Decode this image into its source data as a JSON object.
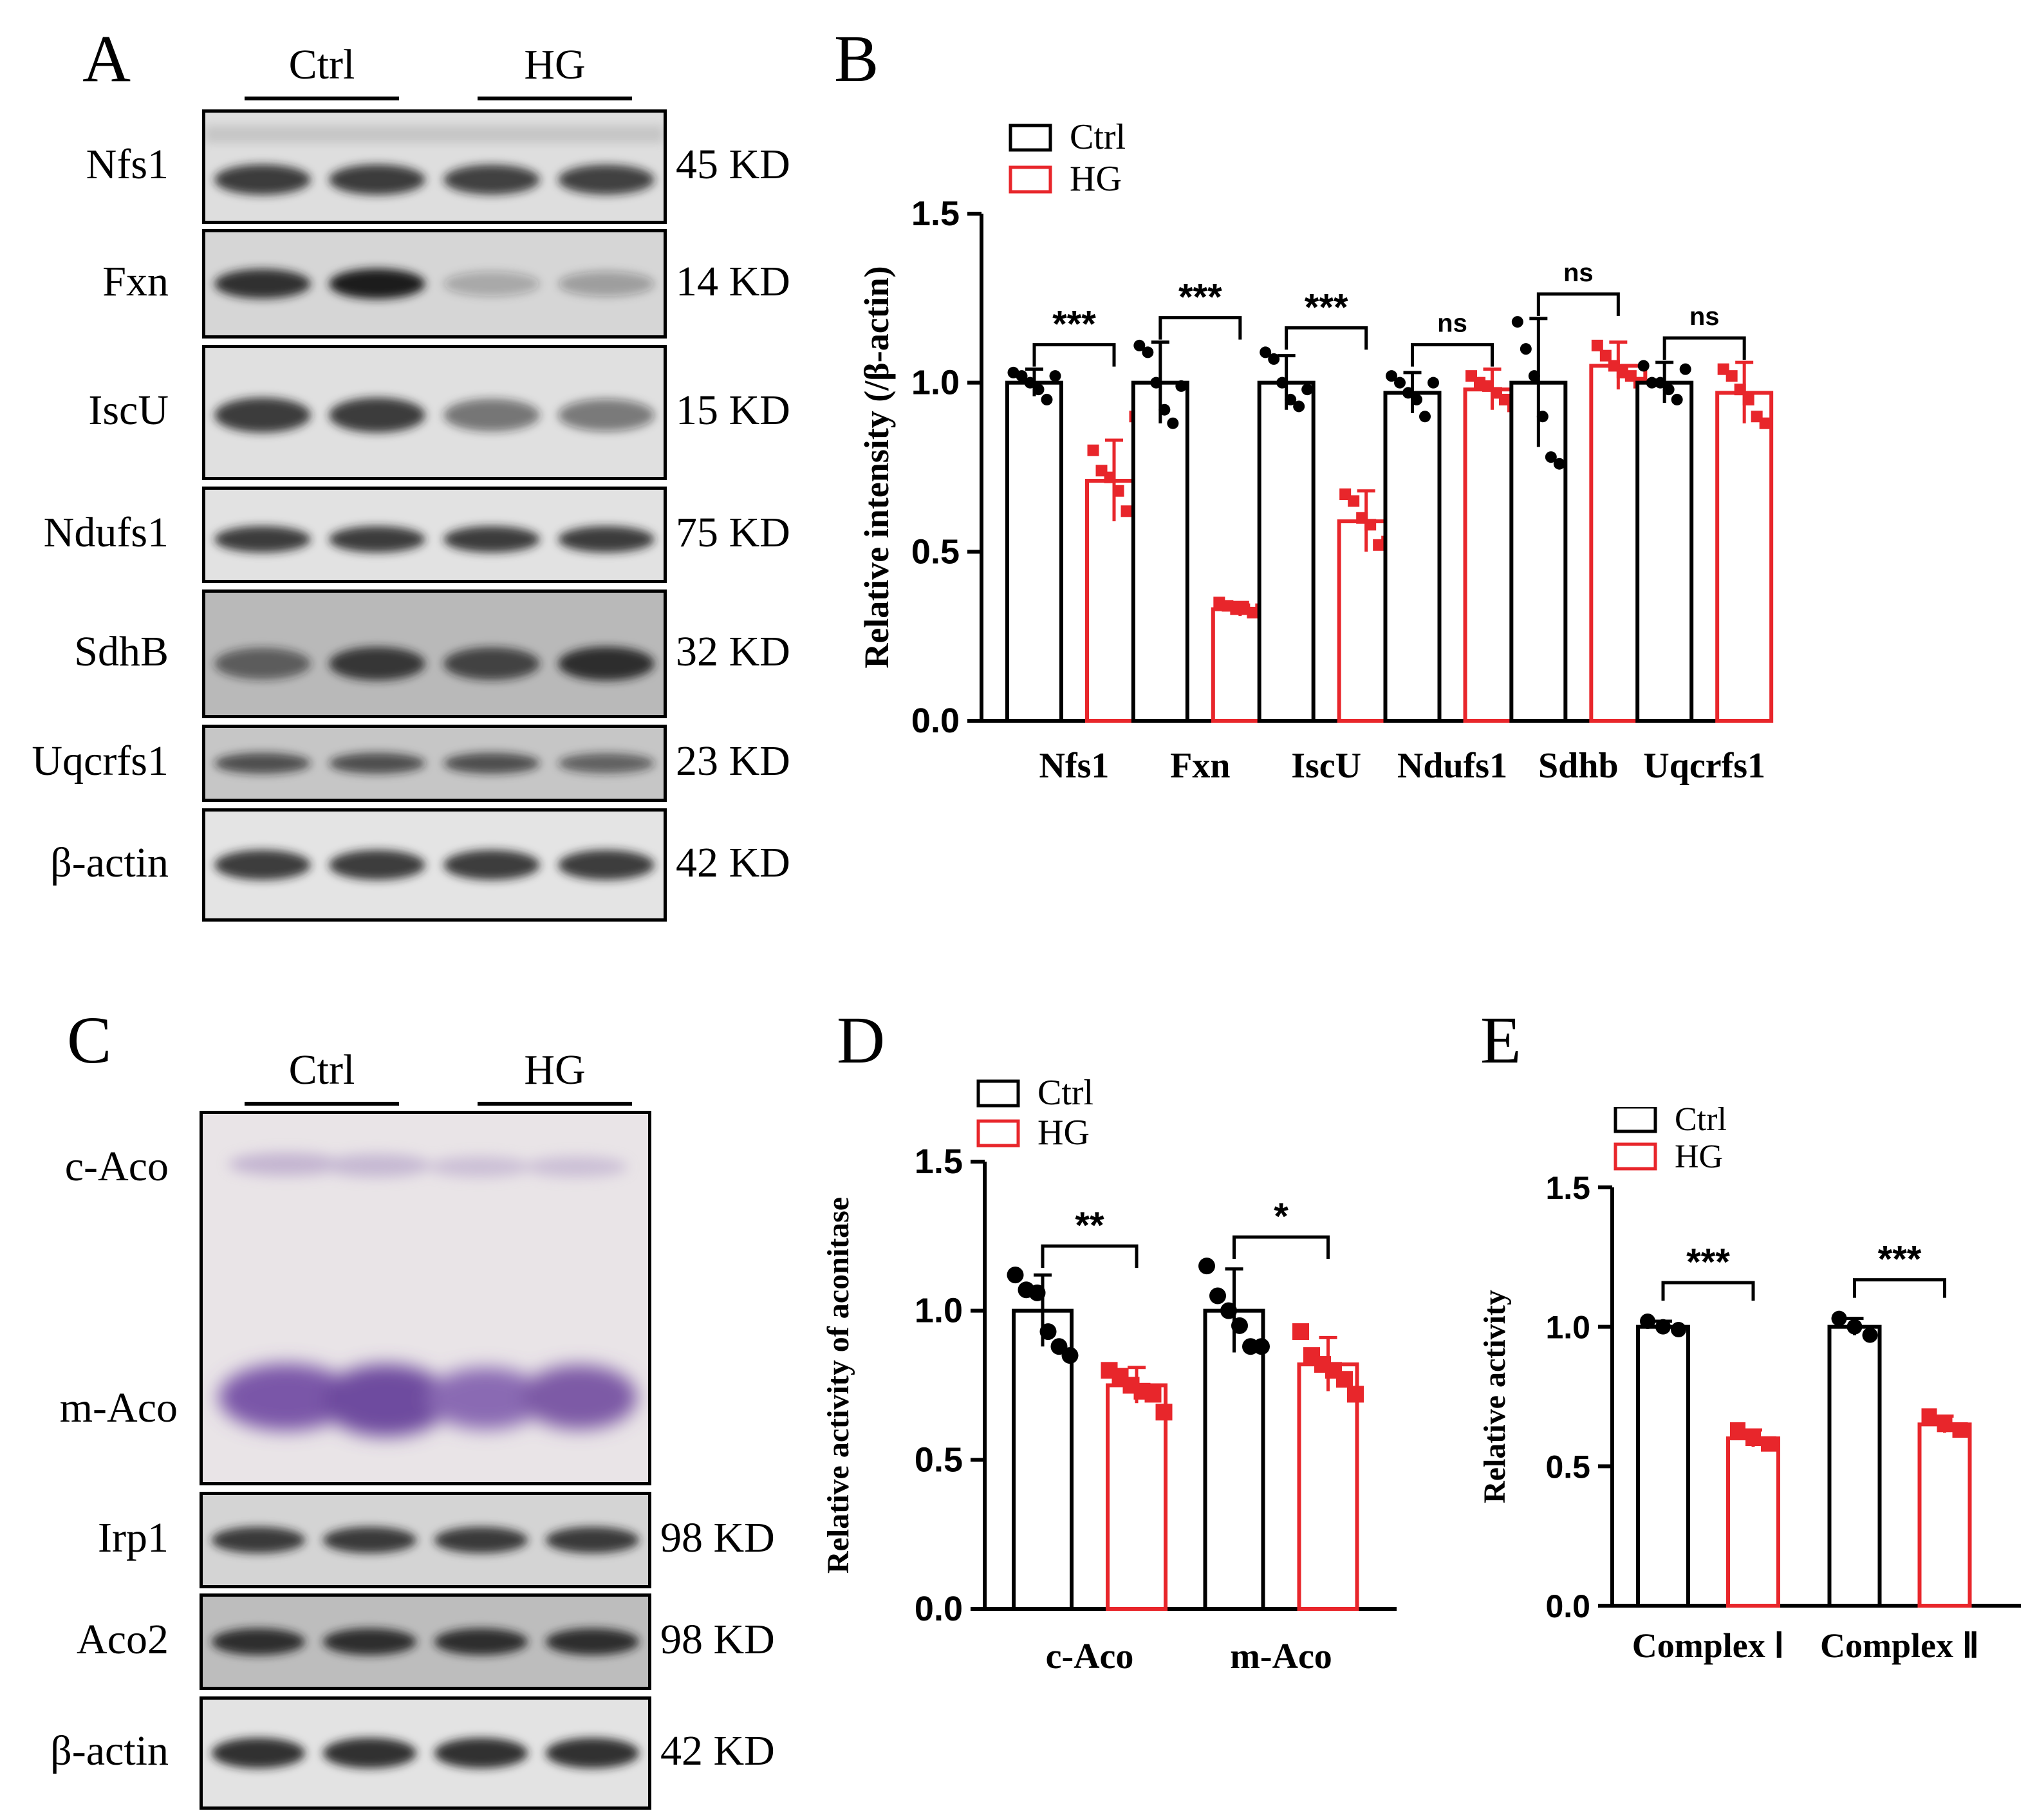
{
  "colors": {
    "ctrl": "#000000",
    "hg": "#e8262b",
    "blot_bg": "#ededed",
    "band": "#1c1c1c",
    "gel_bg": "#e6e0e3",
    "gel_band": "#7d5aa6"
  },
  "panelA": {
    "letter": "A",
    "groups": [
      "Ctrl",
      "HG"
    ],
    "rows": [
      {
        "label": "Nfs1",
        "kd": "45 KD",
        "intensity": [
          0.85,
          0.85,
          0.8,
          0.8
        ]
      },
      {
        "label": "Fxn",
        "kd": "14 KD",
        "intensity": [
          0.9,
          1.0,
          0.25,
          0.3
        ]
      },
      {
        "label": "IscU",
        "kd": "15 KD",
        "intensity": [
          0.85,
          0.85,
          0.55,
          0.5
        ]
      },
      {
        "label": "Ndufs1",
        "kd": "75 KD",
        "intensity": [
          0.85,
          0.85,
          0.85,
          0.85
        ]
      },
      {
        "label": "SdhB",
        "kd": "32 KD",
        "intensity": [
          0.6,
          0.85,
          0.75,
          0.9
        ]
      },
      {
        "label": "Uqcrfs1",
        "kd": "23 KD",
        "intensity": [
          0.7,
          0.7,
          0.7,
          0.6
        ]
      },
      {
        "label": "β-actin",
        "kd": "42 KD",
        "intensity": [
          0.85,
          0.85,
          0.85,
          0.85
        ]
      }
    ]
  },
  "panelC": {
    "letter": "C",
    "groups": [
      "Ctrl",
      "HG"
    ],
    "gel_labels": [
      "c-Aco",
      "m-Aco"
    ],
    "rows": [
      {
        "label": "Irp1",
        "kd": "98 KD",
        "intensity": [
          0.85,
          0.85,
          0.85,
          0.85
        ]
      },
      {
        "label": "Aco2",
        "kd": "98 KD",
        "intensity": [
          0.9,
          0.9,
          0.9,
          0.9
        ]
      },
      {
        "label": "β-actin",
        "kd": "42 KD",
        "intensity": [
          0.9,
          0.9,
          0.9,
          0.9
        ]
      }
    ]
  },
  "chart_data": [
    {
      "panel": "B",
      "type": "bar",
      "ylabel": "Relative intensity (/β-actin)",
      "ylim": [
        0,
        1.5
      ],
      "yticks": [
        "0.0",
        "0.5",
        "1.0",
        "1.5"
      ],
      "categories": [
        "Nfs1",
        "Fxn",
        "IscU",
        "Ndufs1",
        "Sdhb",
        "Uqcrfs1"
      ],
      "legend": [
        "Ctrl",
        "HG"
      ],
      "series": [
        {
          "name": "Ctrl",
          "values": [
            1.0,
            1.0,
            1.0,
            0.97,
            1.0,
            1.0
          ],
          "err": [
            0.04,
            0.12,
            0.08,
            0.06,
            0.19,
            0.06
          ],
          "points": [
            [
              1.03,
              1.02,
              1.0,
              0.98,
              0.95,
              1.02
            ],
            [
              1.11,
              1.09,
              1.0,
              0.92,
              0.88,
              0.99
            ],
            [
              1.09,
              1.07,
              1.0,
              0.95,
              0.93,
              0.98
            ],
            [
              1.02,
              1.0,
              0.97,
              0.95,
              0.9,
              1.0
            ],
            [
              1.18,
              1.1,
              1.02,
              0.9,
              0.78,
              0.76
            ],
            [
              1.05,
              1.0,
              1.0,
              0.98,
              0.95,
              1.04
            ]
          ]
        },
        {
          "name": "HG",
          "values": [
            0.71,
            0.33,
            0.59,
            0.98,
            1.05,
            0.97
          ],
          "err": [
            0.12,
            0.02,
            0.09,
            0.06,
            0.07,
            0.09
          ],
          "points": [
            [
              0.8,
              0.74,
              0.72,
              0.68,
              0.62,
              0.9
            ],
            [
              0.35,
              0.34,
              0.33,
              0.33,
              0.32,
              0.33
            ],
            [
              0.67,
              0.65,
              0.6,
              0.58,
              0.52,
              0.53
            ],
            [
              1.02,
              1.0,
              0.99,
              0.97,
              0.95,
              0.93
            ],
            [
              1.11,
              1.08,
              1.05,
              1.03,
              1.02,
              1.0
            ],
            [
              1.04,
              1.02,
              0.98,
              0.95,
              0.9,
              0.88
            ]
          ]
        }
      ],
      "significance": [
        "***",
        "***",
        "***",
        "ns",
        "ns",
        "ns"
      ]
    },
    {
      "panel": "D",
      "type": "bar",
      "ylabel": "Relative activity of aconitase",
      "ylim": [
        0,
        1.5
      ],
      "yticks": [
        "0.0",
        "0.5",
        "1.0",
        "1.5"
      ],
      "categories": [
        "c-Aco",
        "m-Aco"
      ],
      "legend": [
        "Ctrl",
        "HG"
      ],
      "series": [
        {
          "name": "Ctrl",
          "values": [
            1.0,
            1.0
          ],
          "err": [
            0.12,
            0.14
          ],
          "points": [
            [
              1.12,
              1.07,
              1.06,
              0.93,
              0.88,
              0.85
            ],
            [
              1.15,
              1.05,
              1.0,
              0.95,
              0.88,
              0.88
            ]
          ]
        },
        {
          "name": "HG",
          "values": [
            0.75,
            0.82
          ],
          "err": [
            0.06,
            0.09
          ],
          "points": [
            [
              0.8,
              0.78,
              0.75,
              0.73,
              0.72,
              0.66
            ],
            [
              0.93,
              0.85,
              0.82,
              0.8,
              0.77,
              0.72
            ]
          ]
        }
      ],
      "significance": [
        "**",
        "*"
      ]
    },
    {
      "panel": "E",
      "type": "bar",
      "ylabel": "Relative activity",
      "ylim": [
        0,
        1.5
      ],
      "yticks": [
        "0.0",
        "0.5",
        "1.0",
        "1.5"
      ],
      "categories": [
        "Complex Ⅰ",
        "Complex Ⅱ"
      ],
      "legend": [
        "Ctrl",
        "HG"
      ],
      "series": [
        {
          "name": "Ctrl",
          "values": [
            1.0,
            1.0
          ],
          "err": [
            0.02,
            0.03
          ],
          "points": [
            [
              1.02,
              1.0,
              0.99
            ],
            [
              1.03,
              1.0,
              0.97
            ]
          ]
        },
        {
          "name": "HG",
          "values": [
            0.6,
            0.65
          ],
          "err": [
            0.03,
            0.03
          ],
          "points": [
            [
              0.63,
              0.6,
              0.58
            ],
            [
              0.68,
              0.65,
              0.63
            ]
          ]
        }
      ],
      "significance": [
        "***",
        "***"
      ]
    }
  ]
}
